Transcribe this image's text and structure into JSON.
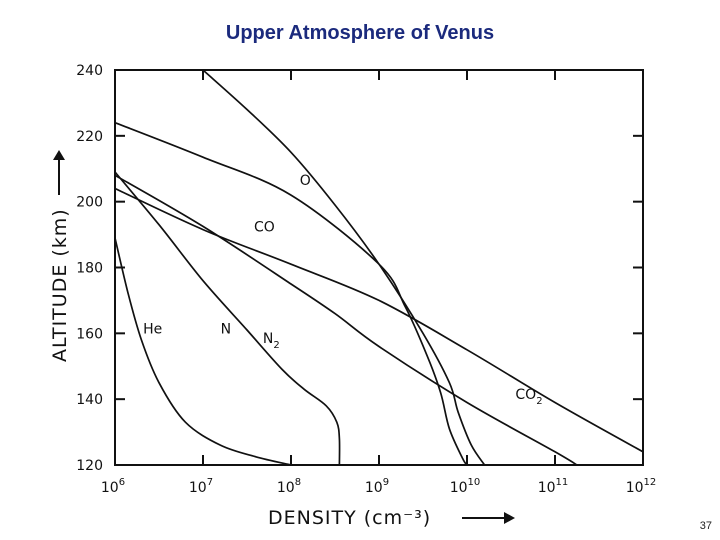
{
  "page": {
    "title": "Upper Atmosphere of Venus",
    "page_number": "37"
  },
  "chart_data": {
    "type": "line",
    "title": "Upper Atmosphere of Venus",
    "xlabel": "DENSITY (cm⁻³)",
    "ylabel": "ALTITUDE (km)",
    "x_scale": "log",
    "x_log_range": [
      6,
      12
    ],
    "ylim": [
      120,
      240
    ],
    "x_ticks": [
      {
        "exp": 6,
        "label": "10",
        "sup": "6"
      },
      {
        "exp": 7,
        "label": "10",
        "sup": "7"
      },
      {
        "exp": 8,
        "label": "10",
        "sup": "8"
      },
      {
        "exp": 9,
        "label": "10",
        "sup": "9"
      },
      {
        "exp": 10,
        "label": "10",
        "sup": "10"
      },
      {
        "exp": 11,
        "label": "10",
        "sup": "11"
      },
      {
        "exp": 12,
        "label": "10",
        "sup": "12"
      }
    ],
    "y_ticks": [
      120,
      140,
      160,
      180,
      200,
      220,
      240
    ],
    "y_tick_labels": [
      "120",
      "140",
      "160",
      "180",
      "200",
      "220",
      "240"
    ],
    "series": [
      {
        "name": "O",
        "label": "O",
        "sub": "",
        "points": [
          [
            7.0,
            240
          ],
          [
            7.5,
            228
          ],
          [
            8.0,
            215
          ],
          [
            8.5,
            199
          ],
          [
            9.0,
            181
          ],
          [
            9.5,
            160
          ],
          [
            9.8,
            145
          ],
          [
            9.9,
            136
          ],
          [
            10.05,
            126
          ],
          [
            10.2,
            120
          ]
        ],
        "label_log_density": 8.1,
        "label_altitude": 205
      },
      {
        "name": "CO",
        "label": "CO",
        "sub": "",
        "points": [
          [
            6.0,
            224
          ],
          [
            7.0,
            213.5
          ],
          [
            8.0,
            202
          ],
          [
            9.0,
            181
          ],
          [
            9.3,
            168
          ],
          [
            9.55,
            153
          ],
          [
            9.7,
            142
          ],
          [
            9.8,
            131
          ],
          [
            9.95,
            122
          ],
          [
            10.0,
            120
          ]
        ],
        "label_log_density": 7.58,
        "label_altitude": 191
      },
      {
        "name": "N2",
        "label": "N",
        "sub": "2",
        "points": [
          [
            6.0,
            208
          ],
          [
            7.0,
            192.5
          ],
          [
            8.0,
            175
          ],
          [
            8.5,
            166
          ],
          [
            9.0,
            156
          ],
          [
            10.0,
            139
          ],
          [
            11.0,
            124
          ],
          [
            11.25,
            120
          ]
        ],
        "label_log_density": 7.68,
        "label_altitude": 157
      },
      {
        "name": "CO2",
        "label": "CO",
        "sub": "2",
        "points": [
          [
            6.0,
            204
          ],
          [
            7.0,
            191.5
          ],
          [
            8.0,
            181
          ],
          [
            9.0,
            170
          ],
          [
            10.0,
            155
          ],
          [
            11.0,
            139
          ],
          [
            12.0,
            124
          ]
        ],
        "label_log_density": 10.55,
        "label_altitude": 140
      },
      {
        "name": "N",
        "label": "N",
        "sub": "",
        "points": [
          [
            6.0,
            209
          ],
          [
            6.5,
            193
          ],
          [
            7.0,
            176
          ],
          [
            7.5,
            161
          ],
          [
            7.9,
            149
          ],
          [
            8.15,
            143
          ],
          [
            8.4,
            138
          ],
          [
            8.52,
            133
          ],
          [
            8.55,
            128
          ],
          [
            8.55,
            120
          ]
        ],
        "label_log_density": 7.2,
        "label_altitude": 160
      },
      {
        "name": "He",
        "label": "He",
        "sub": "",
        "points": [
          [
            6.0,
            189
          ],
          [
            6.15,
            172
          ],
          [
            6.3,
            158
          ],
          [
            6.5,
            145
          ],
          [
            6.8,
            133
          ],
          [
            7.2,
            126
          ],
          [
            7.6,
            122.5
          ],
          [
            8.0,
            120
          ]
        ],
        "label_log_density": 6.32,
        "label_altitude": 160
      }
    ]
  }
}
